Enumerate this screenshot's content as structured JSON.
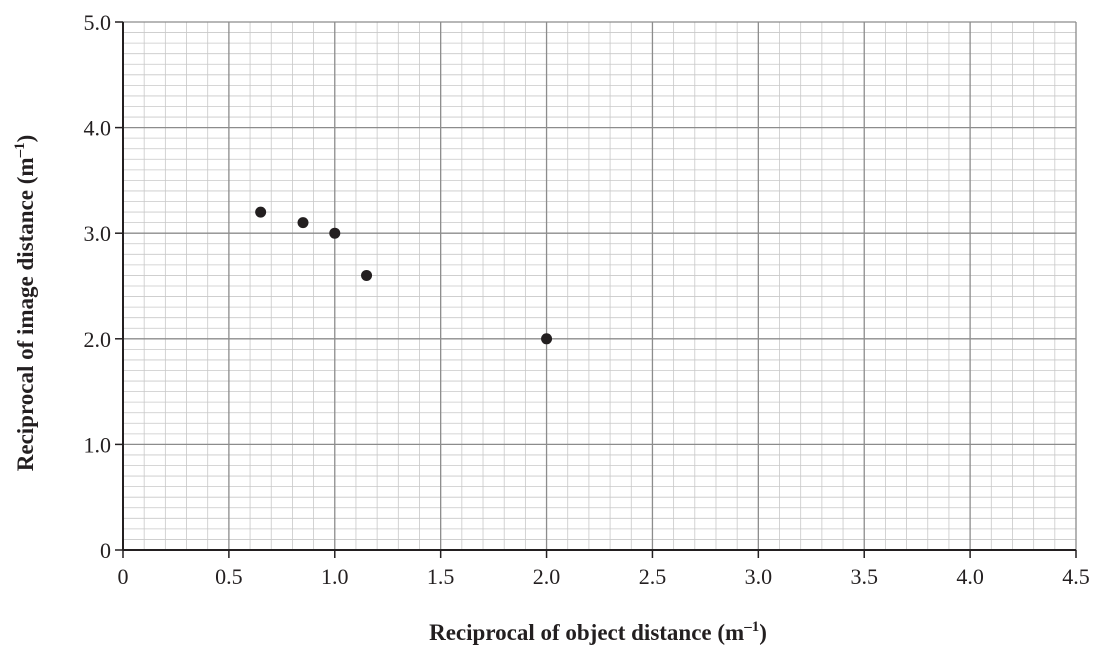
{
  "chart_data": {
    "type": "scatter",
    "title": "",
    "xlabel": "Reciprocal of object distance (m",
    "xlabel_sup": "–1",
    "xlabel_close": ")",
    "ylabel": "Reciprocal of image distance (m",
    "ylabel_sup": "–1",
    "ylabel_close": ")",
    "xlim": [
      0,
      4.5
    ],
    "ylim": [
      0,
      5.0
    ],
    "x_ticks": [
      "0",
      "0.5",
      "1.0",
      "1.5",
      "2.0",
      "2.5",
      "3.0",
      "3.5",
      "4.0",
      "4.5"
    ],
    "y_ticks": [
      "0",
      "1.0",
      "2.0",
      "3.0",
      "4.0",
      "5.0"
    ],
    "grid": true,
    "series": [
      {
        "points": [
          {
            "x": 0.65,
            "y": 3.2
          },
          {
            "x": 0.85,
            "y": 3.1
          },
          {
            "x": 1.0,
            "y": 3.0
          },
          {
            "x": 1.15,
            "y": 2.6
          },
          {
            "x": 2.0,
            "y": 2.0
          }
        ]
      }
    ],
    "colors": {
      "major_grid": "#8c8c8c",
      "minor_grid": "#c8c8c8",
      "axis": "#231f20",
      "marker": "#231f20"
    }
  }
}
